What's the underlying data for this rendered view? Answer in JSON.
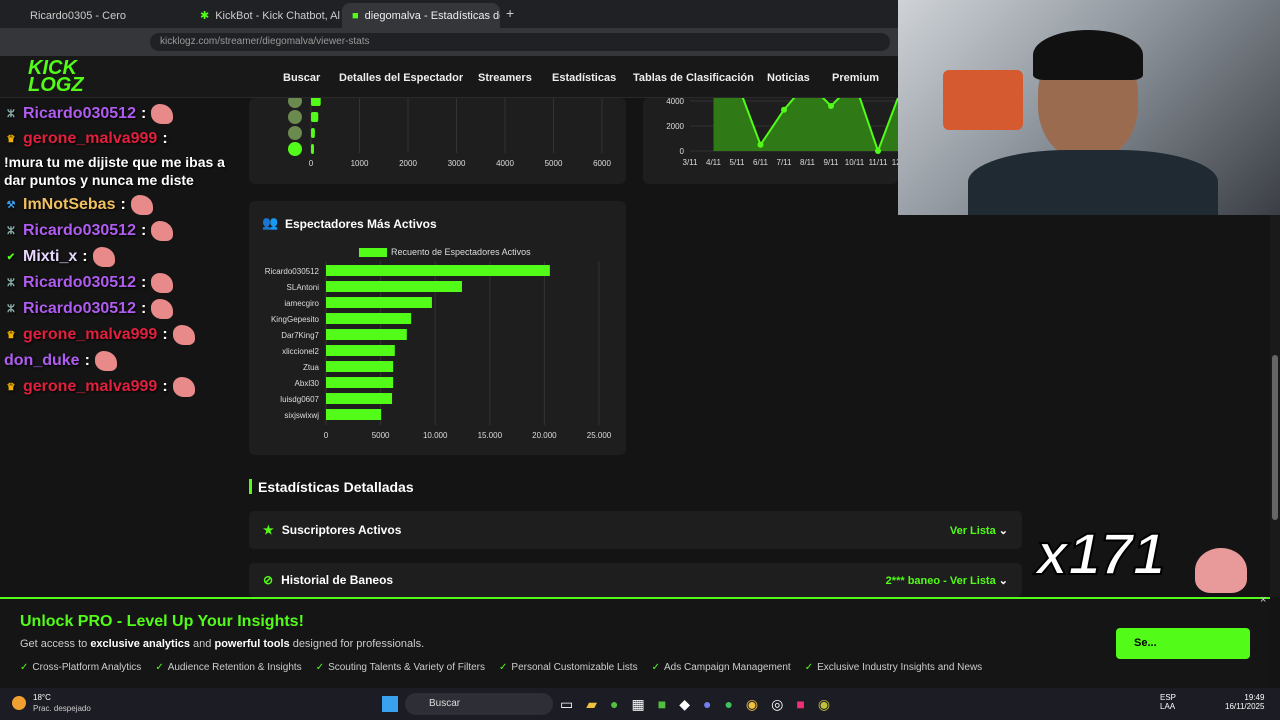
{
  "browser": {
    "tabs": [
      {
        "label": "Ricardo0305 - Cero"
      },
      {
        "label": "KickBot - Kick Chatbot, Alerts, T"
      },
      {
        "label": "diegomalva - Estadísticas de K"
      }
    ],
    "new_tab": "+",
    "url": "kicklogz.com/streamer/diegomalva/viewer-stats"
  },
  "site": {
    "logo": "KICK LOGZ.COM",
    "nav": [
      "Buscar",
      "Detalles del Espectador",
      "Streamers",
      "Estadísticas",
      "Tablas de Clasificación",
      "Noticias",
      "Premium"
    ]
  },
  "chat": [
    {
      "user": "Ricardo030512",
      "color": "#b05cf0",
      "badge": "moderator-icon",
      "msg": ""
    },
    {
      "user": "gerone_malva999",
      "color": "#e0203c",
      "badge": "crown-icon",
      "msg": "!mura tu me dijiste que me ibas a dar puntos y nunca me diste"
    },
    {
      "user": "ImNotSebas",
      "color": "#f0c060",
      "badge": "hammer-icon",
      "msg": ""
    },
    {
      "user": "Ricardo030512",
      "color": "#b05cf0",
      "badge": "moderator-icon",
      "msg": ""
    },
    {
      "user": "Mixti_x",
      "color": "#e8d8ff",
      "badge": "verified-icon",
      "msg": ""
    },
    {
      "user": "Ricardo030512",
      "color": "#b05cf0",
      "badge": "moderator-icon",
      "msg": ""
    },
    {
      "user": "Ricardo030512",
      "color": "#b05cf0",
      "badge": "moderator-icon",
      "msg": ""
    },
    {
      "user": "gerone_malva999",
      "color": "#e0203c",
      "badge": "crown-icon",
      "msg": ""
    },
    {
      "user": "don_duke",
      "color": "#b05cf0",
      "badge": "",
      "msg": ""
    },
    {
      "user": "gerone_malva999",
      "color": "#e0203c",
      "badge": "crown-icon",
      "msg": ""
    }
  ],
  "chart_data": [
    {
      "type": "bar",
      "orientation": "horizontal",
      "categories": [
        "",
        "",
        "",
        ""
      ],
      "values": [
        200,
        150,
        80,
        60
      ],
      "xlim": [
        0,
        6000
      ],
      "xticks": [
        "0",
        "1000",
        "2000",
        "3000",
        "4000",
        "5000",
        "6000"
      ],
      "grid": true
    },
    {
      "type": "area",
      "x": [
        "3/11",
        "4/11",
        "5/11",
        "6/11",
        "7/11",
        "8/11",
        "9/11",
        "10/11",
        "11/11",
        "12/11"
      ],
      "values": [
        null,
        4600,
        5500,
        500,
        3300,
        5500,
        3600,
        5500,
        0,
        5000
      ],
      "yticks": [
        "0",
        "2000",
        "4000"
      ],
      "grid": true,
      "color": "#53fc18"
    },
    {
      "type": "bar",
      "orientation": "horizontal",
      "title": "Espectadores Más Activos",
      "legend": "Recuento de Espectadores Activos",
      "legend_position": "top",
      "categories": [
        "Ricardo030512",
        "SLAntoni",
        "iamecgiro",
        "KingGepesito",
        "Dar7King7",
        "xliccionel2",
        "Ztua",
        "Abxl30",
        "luisdg0607",
        "sixjswixwj"
      ],
      "values": [
        20500,
        12450,
        9700,
        7800,
        7400,
        6300,
        6150,
        6150,
        6050,
        5050
      ],
      "xlim": [
        0,
        25000
      ],
      "xticks": [
        "0",
        "5000",
        "10.000",
        "15.000",
        "20.000",
        "25.000"
      ],
      "grid": true,
      "color": "#53fc18"
    }
  ],
  "section": {
    "title": "Estadísticas Detalladas",
    "rows": [
      {
        "label": "Suscriptores Activos",
        "action": "Ver Lista",
        "icon": "star-icon"
      },
      {
        "label": "Historial de Baneos",
        "action": "2*** baneo - Ver Lista",
        "icon": "ban-icon"
      }
    ]
  },
  "banner": {
    "title": "Unlock PRO - Level Up Your Insights!",
    "desc_pre": "Get access to ",
    "b1": "exclusive analytics",
    "mid": " and ",
    "b2": "powerful tools",
    "desc_post": " designed for professionals.",
    "features": [
      "Cross-Platform Analytics",
      "Audience Retention & Insights",
      "Scouting Talents & Variety of Filters",
      "Personal Customizable Lists",
      "Ads Campaign Management",
      "Exclusive Industry Insights and News"
    ],
    "button": "Se...",
    "close": "×"
  },
  "overlay": {
    "counter": "x171"
  },
  "taskbar": {
    "weather_temp": "18°C",
    "weather_desc": "Prac. despejado",
    "search": "Buscar",
    "lang1": "ESP",
    "lang2": "LAA",
    "time": "19:49",
    "date": "16/11/2025"
  }
}
